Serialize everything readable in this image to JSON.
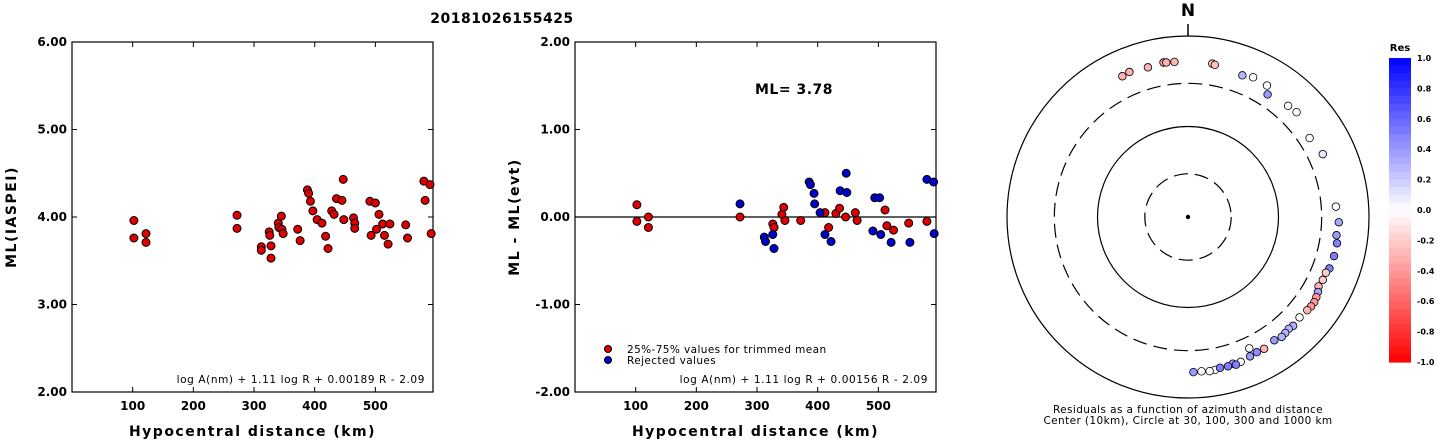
{
  "title": "20181026155425",
  "chart_data": [
    {
      "type": "scatter",
      "ylabel": "ML(IASPEI)",
      "xlabel": "Hypocentral distance (km)",
      "xlim": [
        0,
        595
      ],
      "ylim": [
        2.0,
        6.0
      ],
      "xticks": [
        "100",
        "200",
        "300",
        "400",
        "500"
      ],
      "xtick_values": [
        100,
        200,
        300,
        400,
        500
      ],
      "yticks": [
        "2.00",
        "3.00",
        "4.00",
        "5.00",
        "6.00"
      ],
      "ytick_values": [
        2,
        3,
        4,
        5,
        6
      ],
      "formula": "log A(nm) + 1.11 log R + 0.00189 R - 2.09",
      "series": [
        {
          "color": "#dd0000",
          "points": [
            [
              102,
              3.96
            ],
            [
              102,
              3.76
            ],
            [
              122,
              3.81
            ],
            [
              122,
              3.71
            ],
            [
              272,
              4.02
            ],
            [
              272,
              3.87
            ],
            [
              312,
              3.66
            ],
            [
              312,
              3.62
            ],
            [
              325,
              3.83
            ],
            [
              326,
              3.79
            ],
            [
              328,
              3.67
            ],
            [
              328,
              3.53
            ],
            [
              340,
              3.93
            ],
            [
              341,
              3.88
            ],
            [
              345,
              4.01
            ],
            [
              346,
              3.86
            ],
            [
              348,
              3.81
            ],
            [
              372,
              3.86
            ],
            [
              376,
              3.73
            ],
            [
              388,
              4.31
            ],
            [
              390,
              4.27
            ],
            [
              393,
              4.18
            ],
            [
              397,
              4.07
            ],
            [
              404,
              3.97
            ],
            [
              412,
              3.93
            ],
            [
              418,
              3.78
            ],
            [
              422,
              3.64
            ],
            [
              428,
              4.07
            ],
            [
              432,
              4.03
            ],
            [
              436,
              4.21
            ],
            [
              445,
              4.19
            ],
            [
              447,
              4.43
            ],
            [
              448,
              3.97
            ],
            [
              464,
              3.99
            ],
            [
              466,
              3.93
            ],
            [
              466,
              3.87
            ],
            [
              491,
              4.18
            ],
            [
              493,
              3.79
            ],
            [
              500,
              4.16
            ],
            [
              502,
              3.86
            ],
            [
              506,
              4.03
            ],
            [
              512,
              3.92
            ],
            [
              515,
              3.79
            ],
            [
              521,
              3.69
            ],
            [
              524,
              3.92
            ],
            [
              550,
              3.91
            ],
            [
              553,
              3.76
            ],
            [
              580,
              4.41
            ],
            [
              582,
              4.19
            ],
            [
              590,
              4.37
            ],
            [
              592,
              3.81
            ]
          ]
        }
      ]
    },
    {
      "type": "scatter",
      "ylabel": "ML - ML(evt)",
      "xlabel": "Hypocentral distance (km)",
      "xlim": [
        0,
        595
      ],
      "ylim": [
        -2.0,
        2.0
      ],
      "xticks": [
        "100",
        "200",
        "300",
        "400",
        "500"
      ],
      "xtick_values": [
        100,
        200,
        300,
        400,
        500
      ],
      "yticks": [
        "-2.00",
        "-1.00",
        "0.00",
        "1.00",
        "2.00"
      ],
      "ytick_values": [
        -2,
        -1,
        0,
        1,
        2
      ],
      "reference_line": 0,
      "annotation": "ML= 3.78",
      "legend": [
        "25%-75% values for trimmed mean",
        "Rejected values"
      ],
      "formula": "log A(nm) + 1.11 log R + 0.00156 R - 2.09",
      "series": [
        {
          "name": "25%-75% values for trimmed mean",
          "color": "#dd0000",
          "points": [
            [
              102,
              0.14
            ],
            [
              102,
              -0.05
            ],
            [
              121,
              0.0
            ],
            [
              121,
              -0.12
            ],
            [
              272,
              0.0
            ],
            [
              326,
              -0.08
            ],
            [
              328,
              -0.12
            ],
            [
              341,
              0.03
            ],
            [
              344,
              0.11
            ],
            [
              346,
              -0.04
            ],
            [
              372,
              -0.04
            ],
            [
              412,
              0.05
            ],
            [
              418,
              -0.12
            ],
            [
              430,
              0.04
            ],
            [
              436,
              0.1
            ],
            [
              446,
              0.0
            ],
            [
              462,
              0.05
            ],
            [
              465,
              -0.04
            ],
            [
              511,
              0.08
            ],
            [
              514,
              -0.1
            ],
            [
              525,
              -0.15
            ],
            [
              550,
              -0.07
            ],
            [
              580,
              -0.05
            ]
          ]
        },
        {
          "name": "Rejected values",
          "color": "#0000cc",
          "points": [
            [
              272,
              0.15
            ],
            [
              312,
              -0.23
            ],
            [
              314,
              -0.28
            ],
            [
              326,
              -0.2
            ],
            [
              328,
              -0.36
            ],
            [
              386,
              0.4
            ],
            [
              388,
              0.37
            ],
            [
              394,
              0.27
            ],
            [
              395,
              0.15
            ],
            [
              404,
              0.05
            ],
            [
              412,
              -0.2
            ],
            [
              422,
              -0.28
            ],
            [
              437,
              0.3
            ],
            [
              447,
              0.5
            ],
            [
              448,
              0.28
            ],
            [
              491,
              -0.16
            ],
            [
              494,
              0.22
            ],
            [
              502,
              0.22
            ],
            [
              504,
              -0.2
            ],
            [
              521,
              -0.29
            ],
            [
              552,
              -0.29
            ],
            [
              580,
              0.43
            ],
            [
              591,
              0.4
            ],
            [
              592,
              -0.19
            ]
          ]
        }
      ]
    },
    {
      "type": "scatter",
      "subtype": "polar",
      "north_label": "N",
      "rings_km": [
        30,
        100,
        300,
        1000
      ],
      "dashed_rings_km": [
        30,
        300
      ],
      "caption_line1": "Residuals as a function of azimuth and distance",
      "caption_line2": "Center (10km), Circle at 30, 100, 300 and 1000 km",
      "colorbar_title": "Res",
      "colorbar_ticks": [
        "1.0",
        "0.8",
        "0.6",
        "0.4",
        "0.2",
        "0.0",
        "-0.2",
        "-0.4",
        "-0.6",
        "-0.8",
        "-1.0"
      ],
      "colorbar_tick_values": [
        1.0,
        0.8,
        0.6,
        0.4,
        0.2,
        0.0,
        -0.2,
        -0.4,
        -0.6,
        -0.8,
        -1.0
      ],
      "points": [
        [
          338,
          535,
          -0.3
        ],
        [
          335,
          520,
          -0.3
        ],
        [
          345,
          515,
          -0.3
        ],
        [
          351,
          535,
          -0.35
        ],
        [
          352,
          530,
          -0.3
        ],
        [
          355,
          525,
          -0.3
        ],
        [
          9,
          520,
          -0.2
        ],
        [
          10,
          510,
          -0.25
        ],
        [
          21,
          475,
          0.3
        ],
        [
          25,
          505,
          0.0
        ],
        [
          31,
          495,
          0.0
        ],
        [
          33,
          412,
          0.4
        ],
        [
          42,
          450,
          0.0
        ],
        [
          46,
          465,
          0.0
        ],
        [
          57,
          400,
          0.0
        ],
        [
          65,
          440,
          0.1
        ],
        [
          86,
          435,
          0.0
        ],
        [
          92,
          465,
          0.35
        ],
        [
          97,
          450,
          0.4
        ],
        [
          100,
          470,
          0.5
        ],
        [
          105,
          468,
          0.5
        ],
        [
          110,
          460,
          0.5
        ],
        [
          112,
          440,
          -0.2
        ],
        [
          115,
          440,
          -0.2
        ],
        [
          118,
          430,
          -0.3
        ],
        [
          120,
          455,
          0.35
        ],
        [
          122,
          470,
          -0.4
        ],
        [
          124,
          482,
          -0.4
        ],
        [
          126,
          480,
          -0.4
        ],
        [
          128,
          470,
          -0.3
        ],
        [
          132,
          455,
          0.0
        ],
        [
          136,
          470,
          0.3
        ],
        [
          138,
          460,
          0.3
        ],
        [
          140,
          470,
          0.3
        ],
        [
          142,
          480,
          0.3
        ],
        [
          145,
          460,
          0.4
        ],
        [
          150,
          480,
          -0.3
        ],
        [
          153,
          475,
          0.45
        ],
        [
          156,
          485,
          0.4
        ],
        [
          160,
          505,
          0.0
        ],
        [
          163,
          495,
          0.4
        ],
        [
          165,
          510,
          0.5
        ],
        [
          170,
          520,
          0.0
        ],
        [
          172,
          525,
          0.0
        ],
        [
          175,
          515,
          0.0
        ],
        [
          178,
          520,
          0.4
        ],
        [
          155,
          400,
          0.0
        ],
        [
          162,
          520,
          0.5
        ],
        [
          168,
          505,
          0.5
        ]
      ]
    }
  ]
}
